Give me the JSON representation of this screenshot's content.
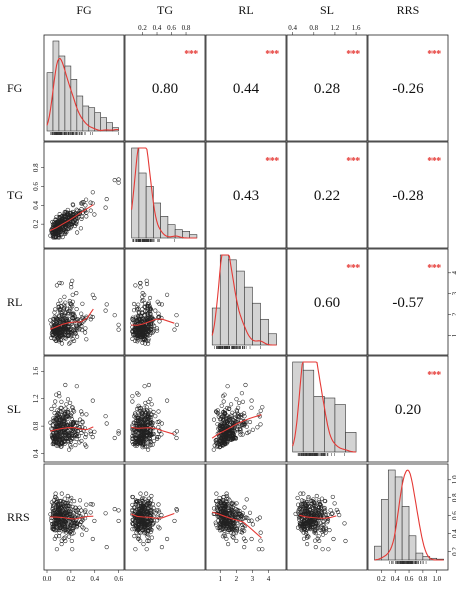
{
  "chart_data": {
    "type": "scatter-matrix",
    "variables": [
      {
        "name": "FG",
        "range": [
          0.0,
          0.62
        ],
        "ticks": [
          "0.0",
          "0.2",
          "0.4",
          "0.6"
        ],
        "tick_values": [
          0.0,
          0.2,
          0.4,
          0.6
        ]
      },
      {
        "name": "TG",
        "range": [
          0.0,
          1.02
        ],
        "ticks": [
          "0.2",
          "0.4",
          "0.6",
          "0.8"
        ],
        "tick_values": [
          0.2,
          0.4,
          0.6,
          0.8
        ]
      },
      {
        "name": "RL",
        "range": [
          0.3,
          4.9
        ],
        "ticks": [
          "1",
          "2",
          "3",
          "4"
        ],
        "tick_values": [
          1,
          2,
          3,
          4
        ]
      },
      {
        "name": "SL",
        "range": [
          0.35,
          1.75
        ],
        "ticks": [
          "0.4",
          "0.8",
          "1.2",
          "1.6"
        ],
        "tick_values": [
          0.4,
          0.8,
          1.2,
          1.6
        ]
      },
      {
        "name": "RRS",
        "range": [
          0.05,
          1.12
        ],
        "ticks": [
          "0.2",
          "0.4",
          "0.6",
          "0.8",
          "1.0"
        ],
        "tick_values": [
          0.2,
          0.4,
          0.6,
          0.8,
          1.0
        ]
      }
    ],
    "correlations": [
      {
        "row": 0,
        "col": 1,
        "value": "0.80",
        "stars": "***"
      },
      {
        "row": 0,
        "col": 2,
        "value": "0.44",
        "stars": "***"
      },
      {
        "row": 0,
        "col": 3,
        "value": "0.28",
        "stars": "***"
      },
      {
        "row": 0,
        "col": 4,
        "value": "-0.26",
        "stars": "***"
      },
      {
        "row": 1,
        "col": 2,
        "value": "0.43",
        "stars": "***"
      },
      {
        "row": 1,
        "col": 3,
        "value": "0.22",
        "stars": "***"
      },
      {
        "row": 1,
        "col": 4,
        "value": "-0.28",
        "stars": "***"
      },
      {
        "row": 2,
        "col": 3,
        "value": "0.60",
        "stars": "***"
      },
      {
        "row": 2,
        "col": 4,
        "value": "-0.57",
        "stars": "***"
      },
      {
        "row": 3,
        "col": 4,
        "value": "0.20",
        "stars": "***"
      }
    ],
    "histograms": [
      {
        "var": "FG",
        "bins": [
          0.0,
          0.05,
          0.1,
          0.15,
          0.2,
          0.25,
          0.3,
          0.35,
          0.4,
          0.45,
          0.5,
          0.55,
          0.6
        ],
        "counts": [
          70,
          108,
          90,
          78,
          62,
          42,
          30,
          28,
          22,
          16,
          10,
          4
        ]
      },
      {
        "var": "TG",
        "bins": [
          0.05,
          0.15,
          0.25,
          0.35,
          0.45,
          0.55,
          0.65,
          0.75,
          0.85,
          0.95
        ],
        "counts": [
          108,
          78,
          62,
          42,
          26,
          16,
          10,
          8,
          4
        ]
      },
      {
        "var": "RL",
        "bins": [
          0.5,
          1.0,
          1.5,
          2.0,
          2.5,
          3.0,
          3.5,
          4.0,
          4.5
        ],
        "counts": [
          46,
          112,
          106,
          92,
          72,
          52,
          32,
          14
        ]
      },
      {
        "var": "SL",
        "bins": [
          0.4,
          0.6,
          0.8,
          1.0,
          1.2,
          1.4,
          1.6
        ],
        "counts": [
          110,
          100,
          68,
          66,
          58,
          24
        ]
      },
      {
        "var": "RRS",
        "bins": [
          0.1,
          0.2,
          0.3,
          0.4,
          0.5,
          0.6,
          0.7,
          0.8,
          0.9,
          1.0,
          1.1
        ],
        "counts": [
          16,
          70,
          104,
          96,
          62,
          28,
          8,
          4,
          2,
          1
        ]
      }
    ],
    "grid": false,
    "legend": "none"
  }
}
